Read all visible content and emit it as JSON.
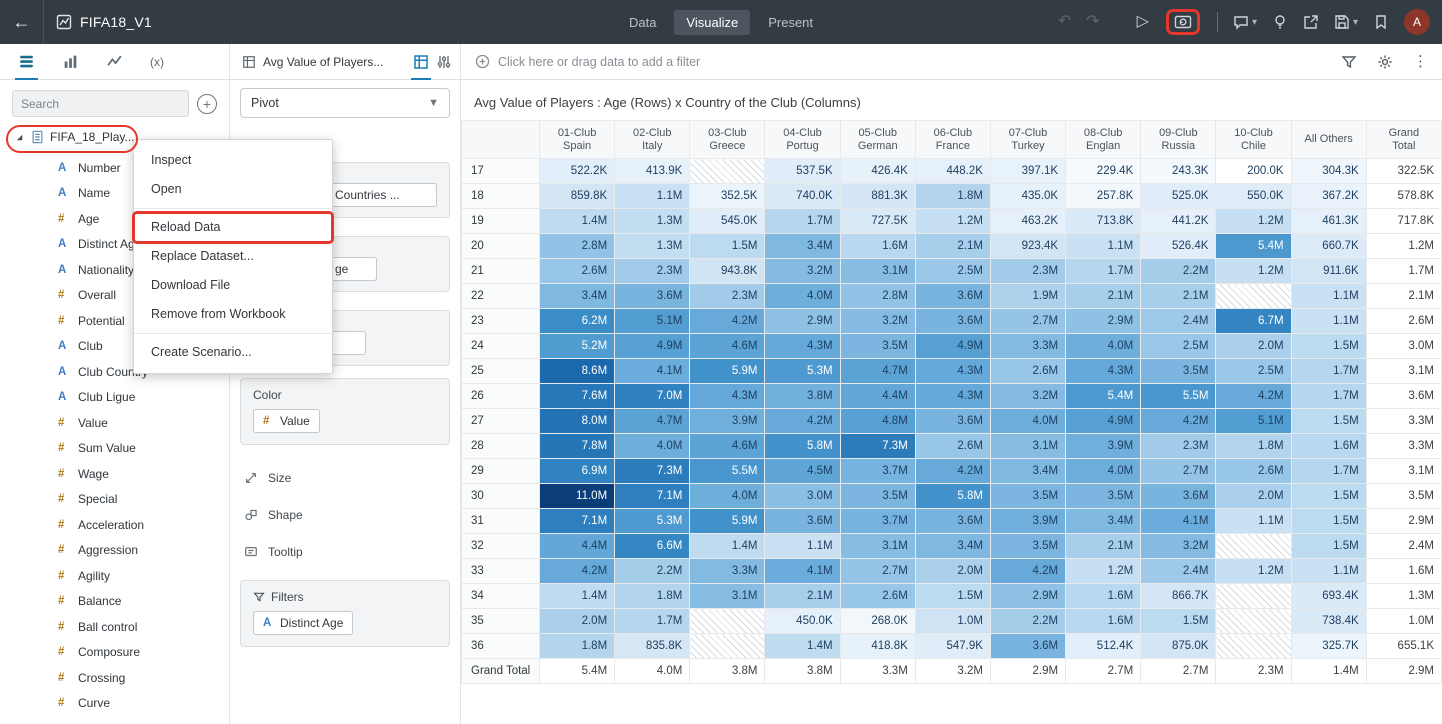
{
  "annotations": {
    "color": "#e5372b",
    "highlighted": [
      "refresh-data-button",
      "dataset-item",
      "menu-item-reload-data"
    ]
  },
  "topbar": {
    "title": "FIFA18_V1",
    "nav_items": [
      "Data",
      "Visualize",
      "Present"
    ],
    "active_nav": "Visualize",
    "avatar_initial": "A"
  },
  "panel_tabs": {
    "calc_label": "(x)"
  },
  "viz_tab": {
    "title": "Avg Value of Players..."
  },
  "filter_bar": {
    "prompt": "Click here or drag data to add a filter"
  },
  "data_panel": {
    "search_placeholder": "Search",
    "dataset": "FIFA_18_Play...",
    "fields": [
      {
        "icon": "A",
        "name": "Number"
      },
      {
        "icon": "A",
        "name": "Name"
      },
      {
        "icon": "#",
        "name": "Age"
      },
      {
        "icon": "A",
        "name": "Distinct Age"
      },
      {
        "icon": "A",
        "name": "Nationality"
      },
      {
        "icon": "#",
        "name": "Overall"
      },
      {
        "icon": "#",
        "name": "Potential"
      },
      {
        "icon": "A",
        "name": "Club"
      },
      {
        "icon": "A",
        "name": "Club Country"
      },
      {
        "icon": "A",
        "name": "Club Ligue"
      },
      {
        "icon": "#",
        "name": "Value"
      },
      {
        "icon": "#",
        "name": "Sum Value"
      },
      {
        "icon": "#",
        "name": "Wage"
      },
      {
        "icon": "#",
        "name": "Special"
      },
      {
        "icon": "#",
        "name": "Acceleration"
      },
      {
        "icon": "#",
        "name": "Aggression"
      },
      {
        "icon": "#",
        "name": "Agility"
      },
      {
        "icon": "#",
        "name": "Balance"
      },
      {
        "icon": "#",
        "name": "Ball control"
      },
      {
        "icon": "#",
        "name": "Composure"
      },
      {
        "icon": "#",
        "name": "Crossing"
      },
      {
        "icon": "#",
        "name": "Curve"
      }
    ]
  },
  "context_menu": {
    "items": [
      {
        "label": "Inspect"
      },
      {
        "label": "Open",
        "separator_after": true
      },
      {
        "label": "Reload Data",
        "highlighted": true
      },
      {
        "label": "Replace Dataset..."
      },
      {
        "label": "Download File"
      },
      {
        "label": "Remove from Workbook",
        "separator_after": true
      },
      {
        "label": "Create Scenario..."
      }
    ]
  },
  "grammar_panel": {
    "viz_type": "Pivot",
    "hidden_sections": [
      {
        "pill": "Countries ..."
      },
      {
        "pill": "ge"
      },
      {
        "pill": ""
      }
    ],
    "color_section": {
      "label": "Color",
      "pill_icon": "#",
      "pill": "Value"
    },
    "drop_targets": [
      "Size",
      "Shape",
      "Tooltip"
    ],
    "filters_section": {
      "label": "Filters",
      "pill_icon": "A",
      "pill": "Distinct Age"
    }
  },
  "chart_data": {
    "type": "heatmap",
    "title": "Avg Value of Players : Age (Rows) x Country of the Club (Columns)",
    "columns": [
      "01-Club Spain",
      "02-Club Italy",
      "03-Club Greece",
      "04-Club Portug",
      "05-Club German",
      "06-Club France",
      "07-Club Turkey",
      "08-Club Englan",
      "09-Club Russia",
      "10-Club Chile",
      "All Others",
      "Grand Total"
    ],
    "column_header_lines": [
      [
        "01-Club",
        "Spain"
      ],
      [
        "02-Club",
        "Italy"
      ],
      [
        "03-Club",
        "Greece"
      ],
      [
        "04-Club",
        "Portug"
      ],
      [
        "05-Club",
        "German"
      ],
      [
        "06-Club",
        "France"
      ],
      [
        "07-Club",
        "Turkey"
      ],
      [
        "08-Club",
        "Englan"
      ],
      [
        "09-Club",
        "Russia"
      ],
      [
        "10-Club",
        "Chile"
      ],
      [
        "All Others"
      ],
      [
        "Grand",
        "Total"
      ]
    ],
    "rows": [
      "17",
      "18",
      "19",
      "20",
      "21",
      "22",
      "23",
      "24",
      "25",
      "26",
      "27",
      "28",
      "29",
      "30",
      "31",
      "32",
      "33",
      "34",
      "35",
      "36",
      "Grand Total"
    ],
    "values": [
      [
        "522.2K",
        "413.9K",
        null,
        "537.5K",
        "426.4K",
        "448.2K",
        "397.1K",
        "229.4K",
        "243.3K",
        "200.0K",
        "304.3K",
        "322.5K"
      ],
      [
        "859.8K",
        "1.1M",
        "352.5K",
        "740.0K",
        "881.3K",
        "1.8M",
        "435.0K",
        "257.8K",
        "525.0K",
        "550.0K",
        "367.2K",
        "578.8K"
      ],
      [
        "1.4M",
        "1.3M",
        "545.0K",
        "1.7M",
        "727.5K",
        "1.2M",
        "463.2K",
        "713.8K",
        "441.2K",
        "1.2M",
        "461.3K",
        "717.8K"
      ],
      [
        "2.8M",
        "1.3M",
        "1.5M",
        "3.4M",
        "1.6M",
        "2.1M",
        "923.4K",
        "1.1M",
        "526.4K",
        "5.4M",
        "660.7K",
        "1.2M"
      ],
      [
        "2.6M",
        "2.3M",
        "943.8K",
        "3.2M",
        "3.1M",
        "2.5M",
        "2.3M",
        "1.7M",
        "2.2M",
        "1.2M",
        "911.6K",
        "1.7M"
      ],
      [
        "3.4M",
        "3.6M",
        "2.3M",
        "4.0M",
        "2.8M",
        "3.6M",
        "1.9M",
        "2.1M",
        "2.1M",
        null,
        "1.1M",
        "2.1M"
      ],
      [
        "6.2M",
        "5.1M",
        "4.2M",
        "2.9M",
        "3.2M",
        "3.6M",
        "2.7M",
        "2.9M",
        "2.4M",
        "6.7M",
        "1.1M",
        "2.6M"
      ],
      [
        "5.2M",
        "4.9M",
        "4.6M",
        "4.3M",
        "3.5M",
        "4.9M",
        "3.3M",
        "4.0M",
        "2.5M",
        "2.0M",
        "1.5M",
        "3.0M"
      ],
      [
        "8.6M",
        "4.1M",
        "5.9M",
        "5.3M",
        "4.7M",
        "4.3M",
        "2.6M",
        "4.3M",
        "3.5M",
        "2.5M",
        "1.7M",
        "3.1M"
      ],
      [
        "7.6M",
        "7.0M",
        "4.3M",
        "3.8M",
        "4.4M",
        "4.3M",
        "3.2M",
        "5.4M",
        "5.5M",
        "4.2M",
        "1.7M",
        "3.6M"
      ],
      [
        "8.0M",
        "4.7M",
        "3.9M",
        "4.2M",
        "4.8M",
        "3.6M",
        "4.0M",
        "4.9M",
        "4.2M",
        "5.1M",
        "1.5M",
        "3.3M"
      ],
      [
        "7.8M",
        "4.0M",
        "4.6M",
        "5.8M",
        "7.3M",
        "2.6M",
        "3.1M",
        "3.9M",
        "2.3M",
        "1.8M",
        "1.6M",
        "3.3M"
      ],
      [
        "6.9M",
        "7.3M",
        "5.5M",
        "4.5M",
        "3.7M",
        "4.2M",
        "3.4M",
        "4.0M",
        "2.7M",
        "2.6M",
        "1.7M",
        "3.1M"
      ],
      [
        "11.0M",
        "7.1M",
        "4.0M",
        "3.0M",
        "3.5M",
        "5.8M",
        "3.5M",
        "3.5M",
        "3.6M",
        "2.0M",
        "1.5M",
        "3.5M"
      ],
      [
        "7.1M",
        "5.3M",
        "5.9M",
        "3.6M",
        "3.7M",
        "3.6M",
        "3.9M",
        "3.4M",
        "4.1M",
        "1.1M",
        "1.5M",
        "2.9M"
      ],
      [
        "4.4M",
        "6.6M",
        "1.4M",
        "1.1M",
        "3.1M",
        "3.4M",
        "3.5M",
        "2.1M",
        "3.2M",
        null,
        "1.5M",
        "2.4M"
      ],
      [
        "4.2M",
        "2.2M",
        "3.3M",
        "4.1M",
        "2.7M",
        "2.0M",
        "4.2M",
        "1.2M",
        "2.4M",
        "1.2M",
        "1.1M",
        "1.6M"
      ],
      [
        "1.4M",
        "1.8M",
        "3.1M",
        "2.1M",
        "2.6M",
        "1.5M",
        "2.9M",
        "1.6M",
        "866.7K",
        null,
        "693.4K",
        "1.3M"
      ],
      [
        "2.0M",
        "1.7M",
        null,
        "450.0K",
        "268.0K",
        "1.0M",
        "2.2M",
        "1.6M",
        "1.5M",
        null,
        "738.4K",
        "1.0M"
      ],
      [
        "1.8M",
        "835.8K",
        null,
        "1.4M",
        "418.8K",
        "547.9K",
        "3.6M",
        "512.4K",
        "875.0K",
        null,
        "325.7K",
        "655.1K"
      ],
      [
        "5.4M",
        "4.0M",
        "3.8M",
        "3.8M",
        "3.3M",
        "3.2M",
        "2.9M",
        "2.7M",
        "2.7M",
        "2.3M",
        "1.4M",
        "2.9M"
      ]
    ],
    "color_scale": {
      "palette": "blues",
      "min": "#ffffff",
      "max": "#0b3d78",
      "applied_to": "data cells excluding Grand Total row and Grand Total column"
    },
    "null_style": "diagonal-hatch"
  }
}
